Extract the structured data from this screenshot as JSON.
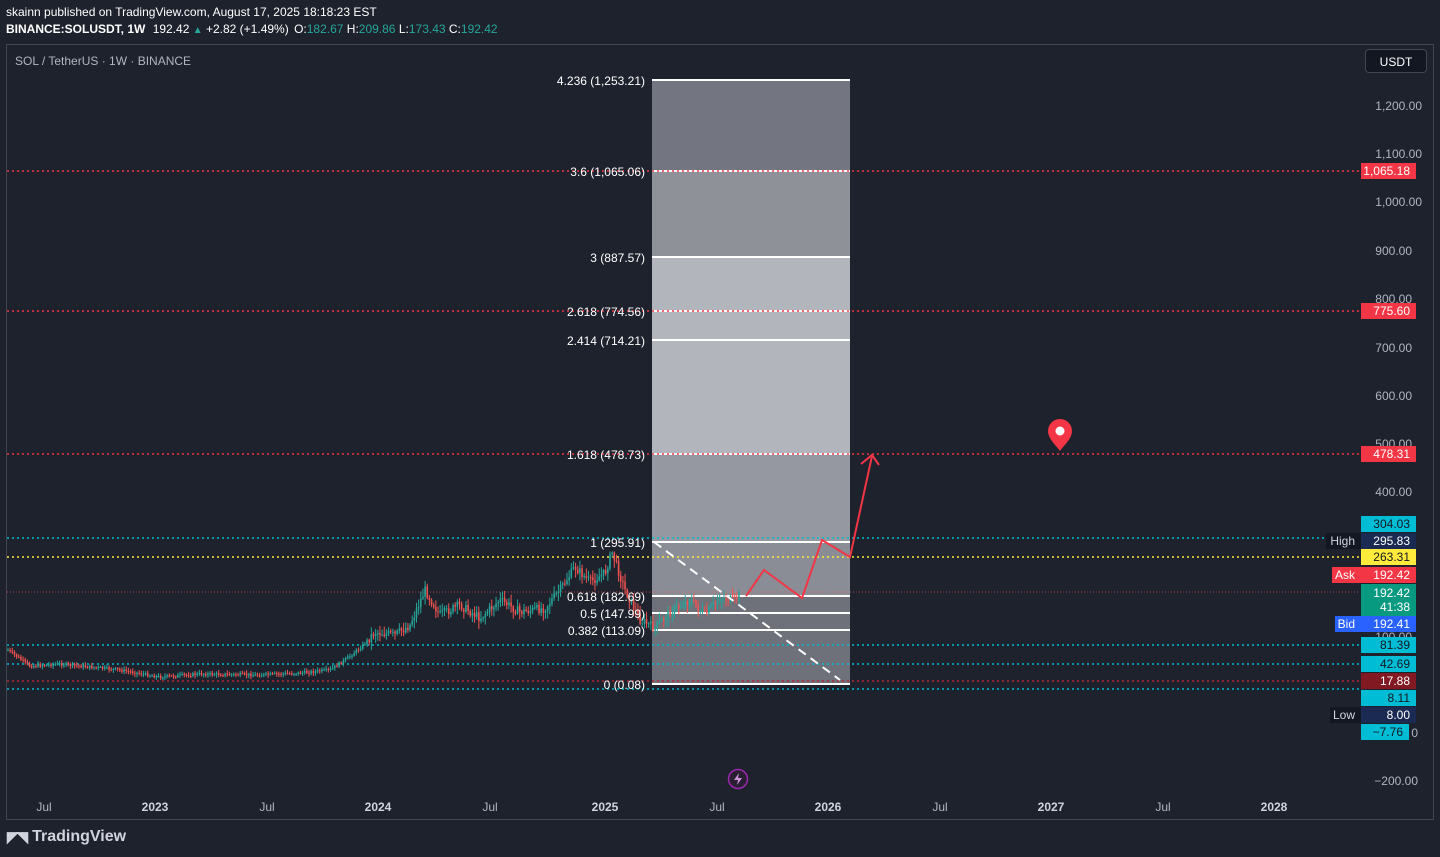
{
  "header": {
    "published_line": "skainn published on TradingView.com, August 17, 2025 18:18:23 EST",
    "symbol": "BINANCE:SOLUSDT, 1W",
    "last": "192.42",
    "change_icon": "triangle-up-icon",
    "change": "+2.82 (+1.49%)",
    "o_label": "O:",
    "o_value": "182.67",
    "h_label": "H:",
    "h_value": "209.86",
    "l_label": "L:",
    "l_value": "173.43",
    "c_label": "C:",
    "c_value": "192.42"
  },
  "chart_title": "SOL / TetherUS · 1W · BINANCE",
  "currency_button": "USDT",
  "footer": {
    "logo_text": "TradingView",
    "logo_icon": "tradingview-logo-icon"
  },
  "colors": {
    "up": "#26a69a",
    "down": "#ef5350",
    "level_red": "#f23645",
    "level_cyan": "#00bcd4",
    "level_yellow": "#ffeb3b",
    "fib_white": "#ffffff"
  },
  "chart_data": {
    "type": "candlestick",
    "title": "SOL / TetherUS · 1W · BINANCE",
    "interval": "1W",
    "y_axis_scale": "logarithmic",
    "y_ticks": [
      "1,200.00",
      "1,100.00",
      "1,000.00",
      "900.00",
      "800.00",
      "700.00",
      "600.00",
      "500.00",
      "400.00",
      "100.00",
      "0",
      "−200.00"
    ],
    "x_ticks": [
      "Jul",
      "2023",
      "Jul",
      "2024",
      "Jul",
      "2025",
      "Jul",
      "2026",
      "Jul",
      "2027",
      "Jul",
      "2028"
    ],
    "fib_extension": [
      {
        "level": "4.236",
        "value": "1,253.21"
      },
      {
        "level": "3.6",
        "value": "1,065.06"
      },
      {
        "level": "3",
        "value": "887.57"
      },
      {
        "level": "2.618",
        "value": "774.56"
      },
      {
        "level": "2.414",
        "value": "714.21"
      },
      {
        "level": "1.618",
        "value": "478.73"
      },
      {
        "level": "1",
        "value": "295.91"
      },
      {
        "level": "0.618",
        "value": "182.69"
      },
      {
        "level": "0.5",
        "value": "147.99"
      },
      {
        "level": "0.382",
        "value": "113.09"
      },
      {
        "level": "0",
        "value": "0.08"
      }
    ],
    "fib_overlap_text": "0.618 (182.69)",
    "horizontal_levels": [
      {
        "value": "1,065.18",
        "color": "red"
      },
      {
        "value": "775.60",
        "color": "red"
      },
      {
        "value": "478.31",
        "color": "red"
      },
      {
        "value": "304.03",
        "color": "cyan"
      },
      {
        "value": "263.31",
        "color": "yellow"
      },
      {
        "value": "81.39",
        "color": "cyan"
      },
      {
        "value": "42.69",
        "color": "cyan"
      },
      {
        "value": "17.88",
        "color": "darkred"
      },
      {
        "value": "8.11",
        "color": "cyan"
      },
      {
        "value": "−7.76",
        "color": "cyan"
      }
    ],
    "price_tags": [
      {
        "label": "High",
        "value": "295.83"
      },
      {
        "label": "Ask",
        "value": "192.42"
      },
      {
        "label": "",
        "value": "192.42",
        "countdown": "41:38"
      },
      {
        "label": "Bid",
        "value": "192.41"
      },
      {
        "label": "Low",
        "value": "8.00"
      }
    ],
    "projection_path": "up-down-up zigzag from current price to the 1.618 (478) level",
    "target_marker_icon": "map-pin-icon",
    "bottom_icon": "lightning-icon"
  }
}
